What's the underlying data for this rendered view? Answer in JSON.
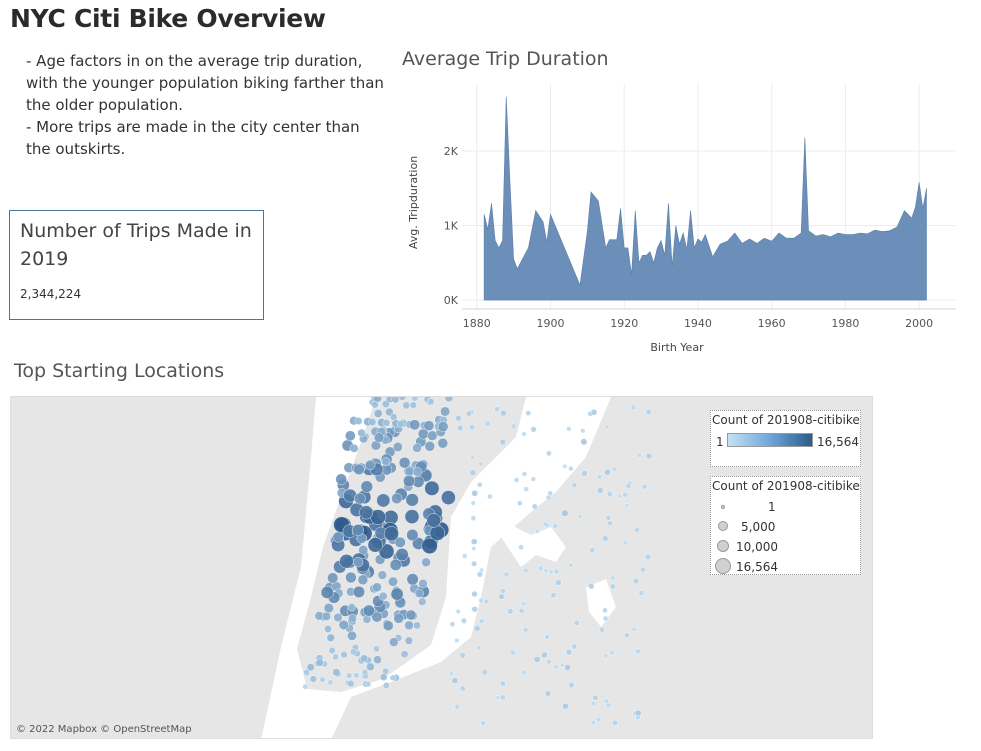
{
  "page": {
    "title": "NYC Citi Bike Overview",
    "notes": [
      "- Age factors in on the average trip duration, with the younger population biking farther than the older population.",
      "- More trips are made in the city center than the outskirts."
    ]
  },
  "trips": {
    "title": "Number of Trips Made in 2019",
    "value": "2,344,224"
  },
  "chart_data": {
    "type": "area",
    "title": "Average Trip Duration",
    "xlabel": "Birth Year",
    "ylabel": "Avg. Tripduration",
    "xlim": [
      1876,
      2010
    ],
    "ylim": [
      -120,
      2900
    ],
    "x_ticks": [
      1880,
      1900,
      1920,
      1940,
      1960,
      1980,
      2000
    ],
    "y_ticks": [
      0,
      1000,
      2000
    ],
    "y_tick_labels": [
      "0K",
      "1K",
      "2K"
    ],
    "color": "#6b8fb8",
    "x": [
      1882,
      1883,
      1884,
      1885,
      1886,
      1887,
      1888,
      1889,
      1890,
      1891,
      1894,
      1896,
      1898,
      1899,
      1900,
      1908,
      1910,
      1911,
      1913,
      1915,
      1916,
      1918,
      1919,
      1920,
      1921,
      1922,
      1923,
      1924,
      1925,
      1926,
      1927,
      1928,
      1929,
      1930,
      1931,
      1932,
      1933,
      1934,
      1935,
      1936,
      1937,
      1938,
      1939,
      1940,
      1941,
      1942,
      1944,
      1946,
      1948,
      1950,
      1952,
      1954,
      1956,
      1958,
      1960,
      1962,
      1964,
      1966,
      1968,
      1969,
      1970,
      1972,
      1974,
      1976,
      1978,
      1980,
      1982,
      1984,
      1986,
      1988,
      1990,
      1992,
      1994,
      1996,
      1998,
      1999,
      2000,
      2001,
      2002
    ],
    "values": [
      1150,
      950,
      1300,
      800,
      700,
      800,
      2730,
      1600,
      550,
      420,
      700,
      1200,
      1050,
      780,
      1150,
      200,
      920,
      1450,
      1330,
      700,
      810,
      810,
      1230,
      700,
      700,
      340,
      1200,
      500,
      600,
      600,
      650,
      500,
      700,
      800,
      600,
      1300,
      450,
      1000,
      750,
      900,
      680,
      1200,
      700,
      820,
      780,
      880,
      580,
      750,
      790,
      900,
      760,
      820,
      760,
      830,
      790,
      900,
      830,
      830,
      900,
      2180,
      930,
      860,
      880,
      850,
      900,
      880,
      880,
      900,
      890,
      940,
      920,
      930,
      980,
      1200,
      1100,
      1250,
      1580,
      1230,
      1500
    ]
  },
  "map": {
    "title": "Top Starting Locations",
    "attribution": "© 2022 Mapbox © OpenStreetMap",
    "colors": {
      "water": "#ffffff",
      "land": "#e6e6e6",
      "low": "#c3e2f7",
      "high": "#2d5a8c"
    },
    "legend_color": {
      "title": "Count of 201908-citibike-...",
      "min": "1",
      "max": "16,564"
    },
    "legend_size": {
      "title": "Count of 201908-citibike-...",
      "items": [
        {
          "label": "1",
          "value": 1
        },
        {
          "label": "5,000",
          "value": 5000
        },
        {
          "label": "10,000",
          "value": 10000
        },
        {
          "label": "16,564",
          "value": 16564
        }
      ]
    }
  }
}
